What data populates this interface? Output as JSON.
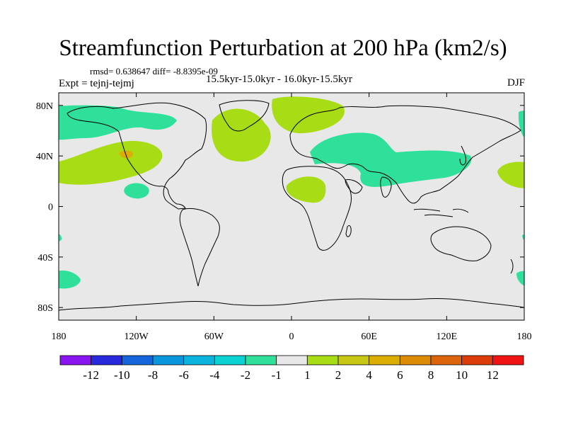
{
  "title": "Streamfunction Perturbation at 200 hPa (km2/s)",
  "stats_text": "rmsd= 0.638647 diff= -8.8395e-09",
  "experiment_text": "Expt = tejnj-tejmj",
  "period_text": "15.5kyr-15.0kyr - 16.0kyr-15.5kyr",
  "season": "DJF",
  "colors": {
    "background": "#e8e8e8",
    "neg_small": "#2fe09a",
    "pos_small": "#a8dc14",
    "pos_mid": "#dcae04",
    "coastline": "#000000"
  },
  "map": {
    "x_ticks": [
      "180",
      "120W",
      "60W",
      "0",
      "60E",
      "120E",
      "180"
    ],
    "y_ticks": [
      "80N",
      "40N",
      "0",
      "40S",
      "80S"
    ],
    "lon_range": [
      -180,
      180
    ],
    "lat_range": [
      -90,
      90
    ]
  },
  "colorbar": {
    "labels": [
      "-12",
      "-10",
      "-8",
      "-6",
      "-4",
      "-2",
      "-1",
      "1",
      "2",
      "4",
      "6",
      "8",
      "10",
      "12"
    ],
    "colors": [
      "#8a14f0",
      "#2828dc",
      "#1464dc",
      "#0a96dc",
      "#0ab4dc",
      "#0ad2d2",
      "#2fe09a",
      "#e8e8e8",
      "#a8dc14",
      "#c8c814",
      "#dcae04",
      "#dc8c04",
      "#dc640a",
      "#dc3c0a",
      "#f01414"
    ]
  }
}
